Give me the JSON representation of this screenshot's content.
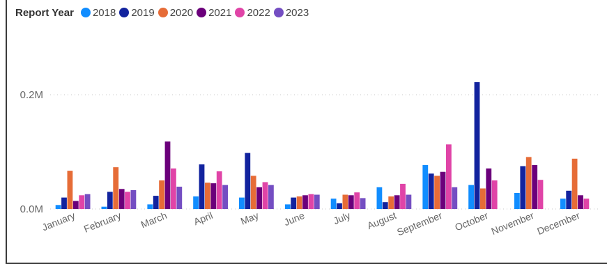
{
  "chart_data": {
    "type": "bar",
    "legend_title": "Report Year",
    "legend_position": "top-left",
    "categories": [
      "January",
      "February",
      "March",
      "April",
      "May",
      "June",
      "July",
      "August",
      "September",
      "October",
      "November",
      "December"
    ],
    "series": [
      {
        "name": "2018",
        "color": "#118DFF",
        "values": [
          7000,
          4000,
          8000,
          22000,
          20000,
          8000,
          18000,
          38000,
          77000,
          42000,
          28000,
          18000
        ]
      },
      {
        "name": "2019",
        "color": "#12239E",
        "values": [
          20000,
          30000,
          23000,
          78000,
          98000,
          20000,
          10000,
          12000,
          62000,
          222000,
          75000,
          32000
        ]
      },
      {
        "name": "2020",
        "color": "#E66C37",
        "values": [
          67000,
          73000,
          50000,
          46000,
          58000,
          22000,
          25000,
          22000,
          58000,
          36000,
          91000,
          88000
        ]
      },
      {
        "name": "2021",
        "color": "#6B007B",
        "values": [
          14000,
          35000,
          118000,
          45000,
          38000,
          24000,
          24000,
          24000,
          65000,
          71000,
          77000,
          24000
        ]
      },
      {
        "name": "2022",
        "color": "#E044A7",
        "values": [
          24000,
          30000,
          71000,
          66000,
          47000,
          26000,
          29000,
          44000,
          113000,
          50000,
          51000,
          18000
        ]
      },
      {
        "name": "2023",
        "color": "#744EC2",
        "values": [
          26000,
          33000,
          39000,
          42000,
          42000,
          25000,
          19000,
          25000,
          38000,
          null,
          null,
          null
        ]
      }
    ],
    "y_ticks": [
      {
        "value": 0,
        "label": "0.0M"
      },
      {
        "value": 200000,
        "label": "0.2M"
      }
    ],
    "ylim": [
      0,
      240000
    ],
    "gridlines": true,
    "title": "",
    "xlabel": "",
    "ylabel": ""
  }
}
